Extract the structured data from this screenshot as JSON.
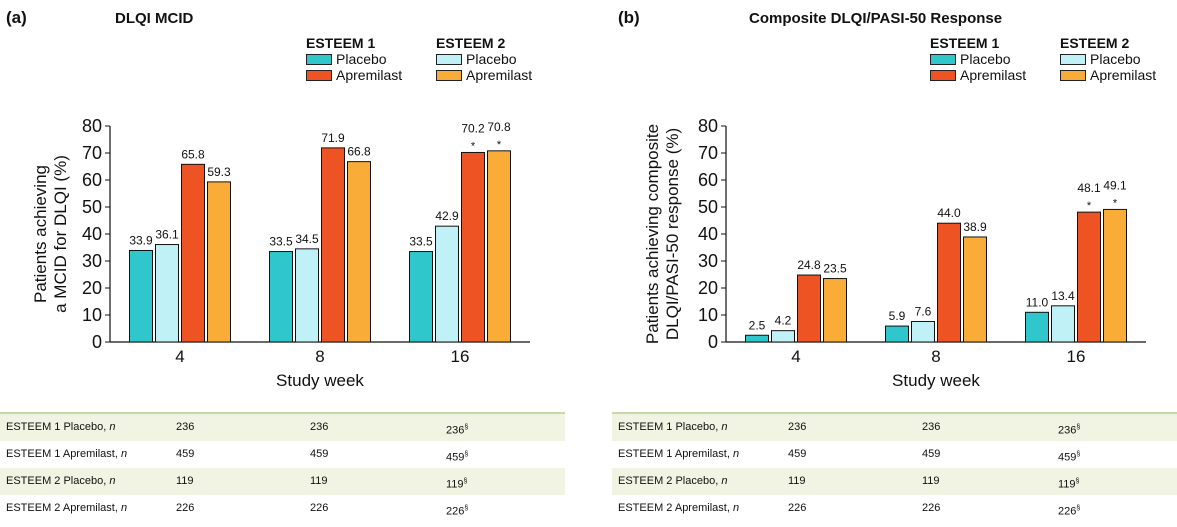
{
  "colors": {
    "esteem1_placebo": "#2fc6cc",
    "esteem2_placebo": "#bff1f6",
    "esteem1_apremilast": "#ee5423",
    "esteem2_apremilast": "#f9ad38",
    "table_shade": "#f1f4e3",
    "table_rule": "#c9d8a6"
  },
  "legend": {
    "groups": [
      {
        "title": "ESTEEM 1",
        "items": [
          "Placebo",
          "Apremilast"
        ]
      },
      {
        "title": "ESTEEM 2",
        "items": [
          "Placebo",
          "Apremilast"
        ]
      }
    ]
  },
  "chart_data": [
    {
      "type": "bar",
      "panel_label": "(a)",
      "title": "DLQI MCID",
      "xlabel": "Study week",
      "ylabel": "Patients achieving\na MCID for DLQI (%)",
      "categories": [
        "4",
        "8",
        "16"
      ],
      "ylim": [
        0,
        80
      ],
      "yticks": [
        "0",
        "10",
        "20",
        "30",
        "40",
        "50",
        "60",
        "70",
        "80"
      ],
      "series": [
        {
          "name": "ESTEEM 1 Placebo",
          "values": [
            33.9,
            33.5,
            33.5
          ],
          "labels": [
            "33.9",
            "33.5",
            "33.5"
          ],
          "stars": [
            false,
            false,
            false
          ]
        },
        {
          "name": "ESTEEM 2 Placebo",
          "values": [
            36.1,
            34.5,
            42.9
          ],
          "labels": [
            "36.1",
            "34.5",
            "42.9"
          ],
          "stars": [
            false,
            false,
            false
          ]
        },
        {
          "name": "ESTEEM 1 Apremilast",
          "values": [
            65.8,
            71.9,
            70.2
          ],
          "labels": [
            "65.8",
            "71.9",
            "70.2"
          ],
          "stars": [
            false,
            false,
            true
          ]
        },
        {
          "name": "ESTEEM 2 Apremilast",
          "values": [
            59.3,
            66.8,
            70.8
          ],
          "labels": [
            "59.3",
            "66.8",
            "70.8"
          ],
          "stars": [
            false,
            false,
            true
          ]
        }
      ],
      "star_symbol": "*",
      "table": {
        "rows": [
          {
            "label": "ESTEEM 1 Placebo, ",
            "n": "n",
            "values": [
              "236",
              "236",
              "236"
            ],
            "mark": "§"
          },
          {
            "label": "ESTEEM 1 Apremilast, ",
            "n": "n",
            "values": [
              "459",
              "459",
              "459"
            ],
            "mark": "§"
          },
          {
            "label": "ESTEEM 2 Placebo, ",
            "n": "n",
            "values": [
              "119",
              "119",
              "119"
            ],
            "mark": "§"
          },
          {
            "label": "ESTEEM 2 Apremilast, ",
            "n": "n",
            "values": [
              "226",
              "226",
              "226"
            ],
            "mark": "§"
          }
        ]
      }
    },
    {
      "type": "bar",
      "panel_label": "(b)",
      "title": "Composite DLQI/PASI-50 Response",
      "xlabel": "Study week",
      "ylabel": "Patients achieving composite\nDLQI/PASI-50 response (%)",
      "categories": [
        "4",
        "8",
        "16"
      ],
      "ylim": [
        0,
        80
      ],
      "yticks": [
        "0",
        "10",
        "20",
        "30",
        "40",
        "50",
        "60",
        "70",
        "80"
      ],
      "series": [
        {
          "name": "ESTEEM 1 Placebo",
          "values": [
            2.5,
            5.9,
            11.0
          ],
          "labels": [
            "2.5",
            "5.9",
            "11.0"
          ],
          "stars": [
            false,
            false,
            false
          ]
        },
        {
          "name": "ESTEEM 2 Placebo",
          "values": [
            4.2,
            7.6,
            13.4
          ],
          "labels": [
            "4.2",
            "7.6",
            "13.4"
          ],
          "stars": [
            false,
            false,
            false
          ]
        },
        {
          "name": "ESTEEM 1 Apremilast",
          "values": [
            24.8,
            44.0,
            48.1
          ],
          "labels": [
            "24.8",
            "44.0",
            "48.1"
          ],
          "stars": [
            false,
            false,
            true
          ]
        },
        {
          "name": "ESTEEM 2 Apremilast",
          "values": [
            23.5,
            38.9,
            49.1
          ],
          "labels": [
            "23.5",
            "38.9",
            "49.1"
          ],
          "stars": [
            false,
            false,
            true
          ]
        }
      ],
      "star_symbol": "*",
      "table": {
        "rows": [
          {
            "label": "ESTEEM 1 Placebo, ",
            "n": "n",
            "values": [
              "236",
              "236",
              "236"
            ],
            "mark": "§"
          },
          {
            "label": "ESTEEM 1 Apremilast, ",
            "n": "n",
            "values": [
              "459",
              "459",
              "459"
            ],
            "mark": "§"
          },
          {
            "label": "ESTEEM 2 Placebo, ",
            "n": "n",
            "values": [
              "119",
              "119",
              "119"
            ],
            "mark": "§"
          },
          {
            "label": "ESTEEM 2 Apremilast, ",
            "n": "n",
            "values": [
              "226",
              "226",
              "226"
            ],
            "mark": "§"
          }
        ]
      }
    }
  ]
}
